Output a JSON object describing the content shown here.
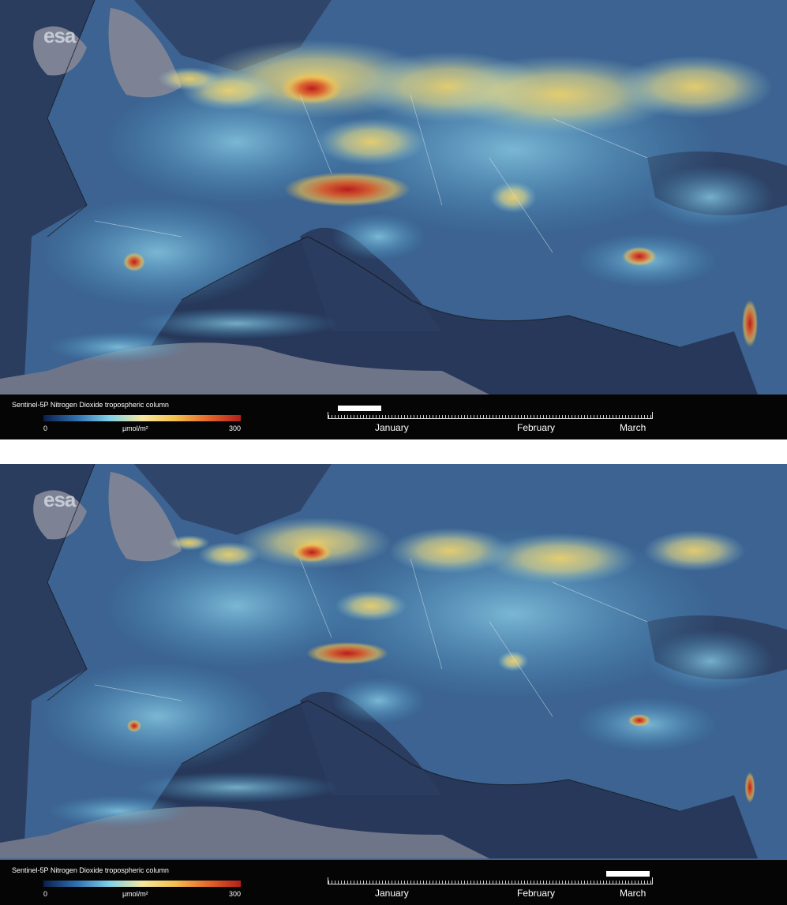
{
  "panels": [
    {
      "logo": "esa",
      "legend": {
        "title": "Sentinel-5P Nitrogen Dioxide tropospheric column",
        "min": 0,
        "unit": "µmol/m²",
        "max": 300
      },
      "timeline": [
        "January",
        "February",
        "March"
      ]
    },
    {
      "logo": "esa",
      "legend": {
        "title": "Sentinel-5P Nitrogen Dioxide tropospheric column",
        "min": 0,
        "unit": "µmol/m²",
        "max": 300
      },
      "timeline": [
        "January",
        "February",
        "March"
      ]
    }
  ]
}
